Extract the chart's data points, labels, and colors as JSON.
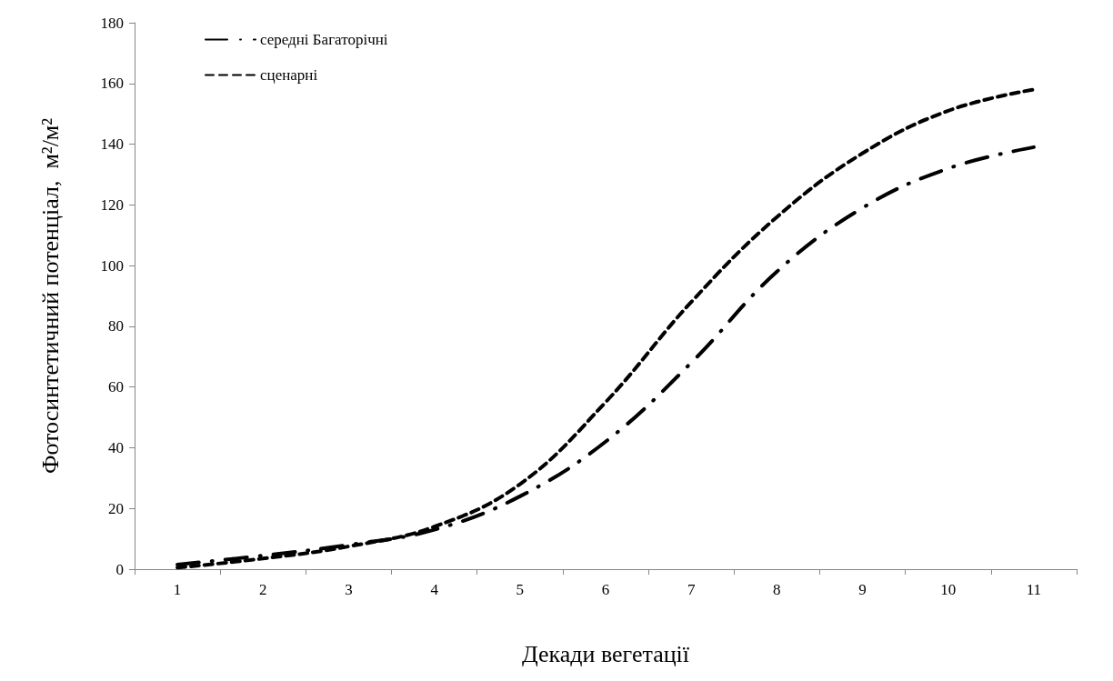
{
  "chart_data": {
    "type": "line",
    "xlabel": "Декади вегетації",
    "ylabel": "Фотосинтетичний потенціал,  м²/м²",
    "categories": [
      "1",
      "2",
      "3",
      "4",
      "5",
      "6",
      "7",
      "8",
      "9",
      "10",
      "11"
    ],
    "series": [
      {
        "name": "середні Багаторічні",
        "color": "#000000",
        "line_style": "dashdot",
        "values": [
          1.5,
          4.5,
          8,
          13,
          24,
          42,
          68,
          98,
          119,
          132,
          139
        ]
      },
      {
        "name": "сценарні",
        "color": "#000000",
        "line_style": "dashed",
        "values": [
          0.5,
          3.5,
          7.5,
          14,
          28,
          55,
          88,
          116,
          137,
          151,
          158
        ]
      }
    ],
    "ylim": [
      0,
      180
    ],
    "yticks": [
      0,
      20,
      40,
      60,
      80,
      100,
      120,
      140,
      160,
      180
    ],
    "grid": false,
    "legend": "top left",
    "marker": "none"
  }
}
